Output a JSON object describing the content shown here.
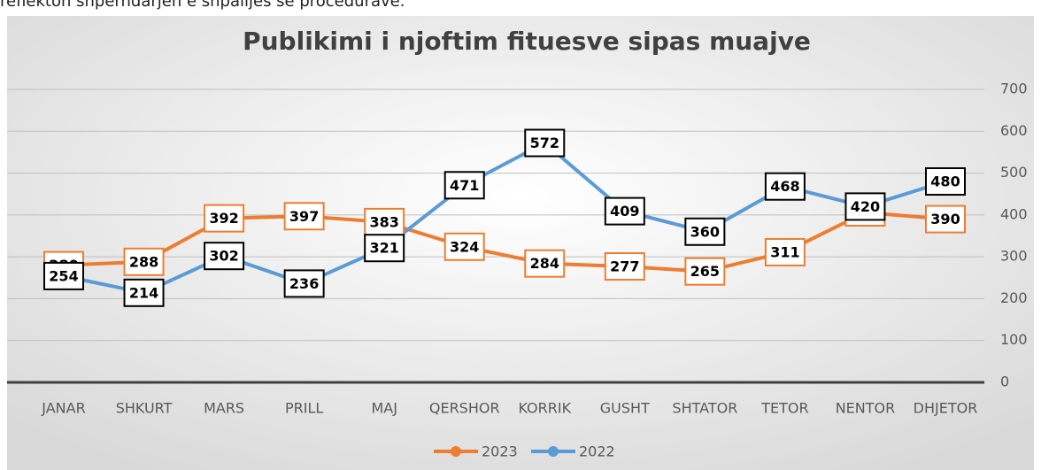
{
  "caption": "reflekton shpërndarjen e shpalljes së procedurave.",
  "chart_data": {
    "type": "line",
    "title": "Publikimi i njoftim fituesve sipas muajve",
    "categories": [
      "JANAR",
      "SHKURT",
      "MARS",
      "PRILL",
      "MAJ",
      "QERSHOR",
      "KORRIK",
      "GUSHT",
      "SHTATOR",
      "TETOR",
      "NENTOR",
      "DHJETOR"
    ],
    "series": [
      {
        "name": "2023",
        "color": "#ed7d31",
        "values": [
          280,
          288,
          392,
          397,
          383,
          324,
          284,
          277,
          265,
          311,
          406,
          390
        ]
      },
      {
        "name": "2022",
        "color": "#5b9bd5",
        "values": [
          254,
          214,
          302,
          236,
          321,
          471,
          572,
          409,
          360,
          468,
          420,
          480
        ]
      }
    ],
    "ylim": [
      0,
      700
    ],
    "yticks": [
      0,
      100,
      200,
      300,
      400,
      500,
      600,
      700
    ],
    "grid": true,
    "legend": "bottom"
  }
}
